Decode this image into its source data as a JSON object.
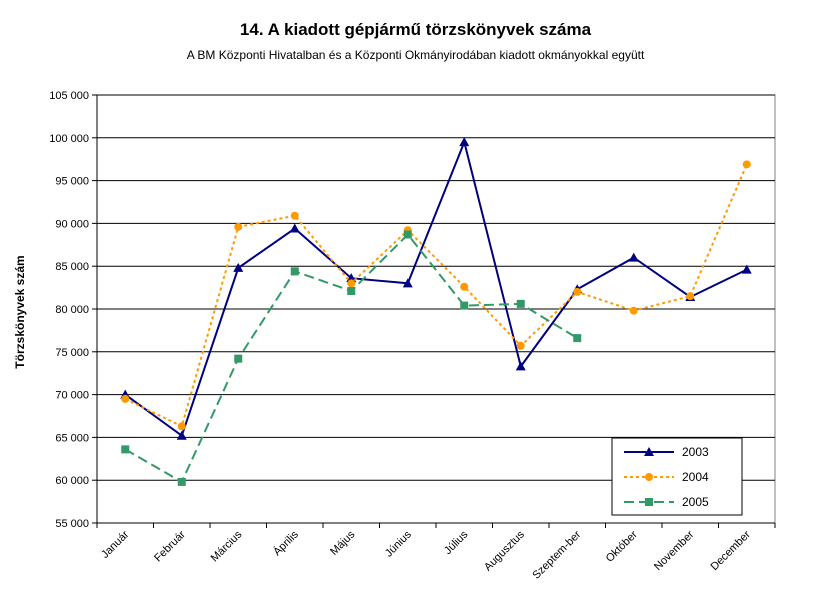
{
  "chart_data": {
    "type": "line",
    "title": "14. A  kiadott gépjármű  törzskönyvek száma",
    "subtitle": "A BM Központi Hivatalban és a Központi Okmányirodában kiadott okmányokkal együtt",
    "xlabel": "",
    "ylabel": "Törzskönyvek szám",
    "categories": [
      "Január",
      "Február",
      "Március",
      "Április",
      "Május",
      "Június",
      "Július",
      "Augusztus",
      "Szeptem-ber",
      "Október",
      "November",
      "December"
    ],
    "ylim": [
      55000,
      105000
    ],
    "yticks": [
      55000,
      60000,
      65000,
      70000,
      75000,
      80000,
      85000,
      90000,
      95000,
      100000,
      105000
    ],
    "ytick_labels": [
      "55 000",
      "60 000",
      "65 000",
      "70 000",
      "75 000",
      "80 000",
      "85 000",
      "90 000",
      "95 000",
      "100 000",
      "105 000"
    ],
    "grid": "horizontal",
    "legend_position": "bottom-right",
    "series": [
      {
        "name": "2003",
        "color": "#000080",
        "marker": "triangle",
        "line_style": "solid",
        "values": [
          70000,
          65200,
          84800,
          89400,
          83600,
          83000,
          99500,
          73300,
          82300,
          86000,
          81400,
          84600
        ]
      },
      {
        "name": "2004",
        "color": "#FF9900",
        "marker": "circle",
        "line_style": "dotted",
        "values": [
          69500,
          66300,
          89600,
          90900,
          83000,
          89200,
          82600,
          75700,
          82000,
          79800,
          81500,
          96900
        ]
      },
      {
        "name": "2005",
        "color": "#339966",
        "marker": "square",
        "line_style": "dashed",
        "values": [
          63600,
          59800,
          74200,
          84400,
          82100,
          88700,
          80400,
          80600,
          76600,
          null,
          null,
          null
        ]
      }
    ]
  }
}
